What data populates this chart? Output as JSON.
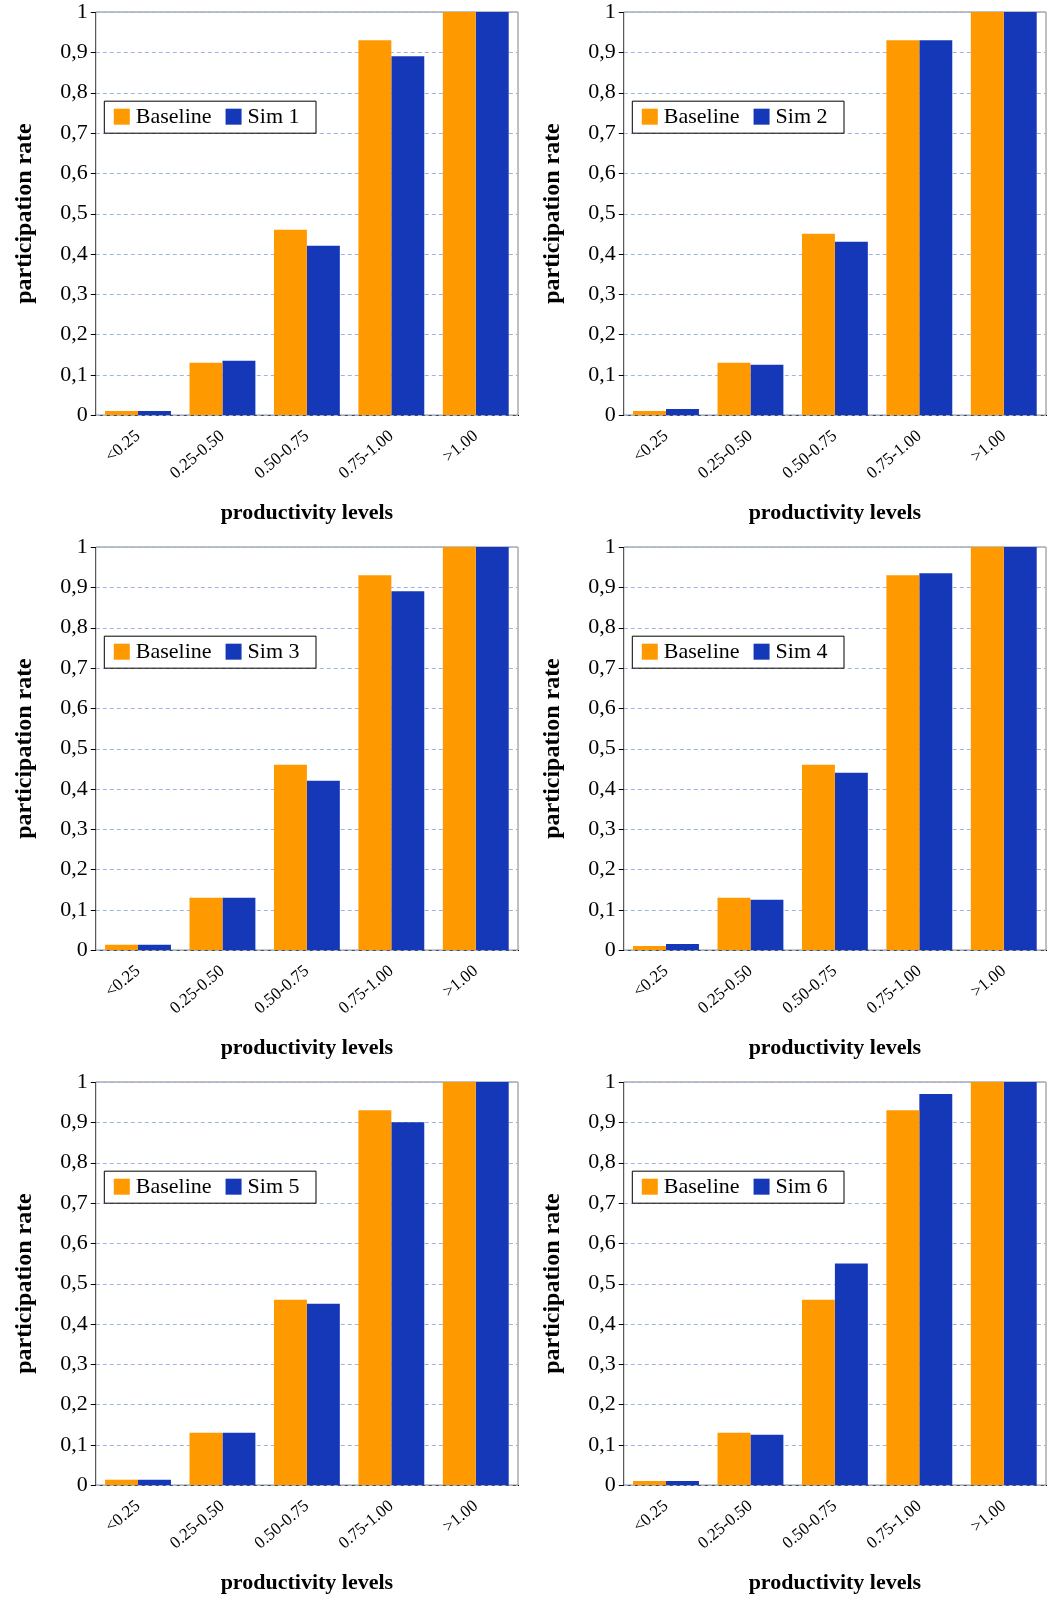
{
  "chart_data": [
    {
      "type": "bar",
      "xlabel": "productivity levels",
      "ylabel": "participation rate",
      "categories": [
        "<0.25",
        "0.25-0.50",
        "0.50-0.75",
        "0.75-1.00",
        ">1.00"
      ],
      "series": [
        {
          "name": "Baseline",
          "color": "#ff9900",
          "values": [
            0.01,
            0.13,
            0.46,
            0.93,
            1.0
          ]
        },
        {
          "name": "Sim 1",
          "color": "#1438b8",
          "values": [
            0.01,
            0.135,
            0.42,
            0.89,
            1.0
          ]
        }
      ],
      "ylim": [
        0,
        1
      ],
      "yticks": [
        {
          "value": 0,
          "label": "0"
        },
        {
          "value": 0.1,
          "label": "0,1"
        },
        {
          "value": 0.2,
          "label": "0,2"
        },
        {
          "value": 0.3,
          "label": "0,3"
        },
        {
          "value": 0.4,
          "label": "0,4"
        },
        {
          "value": 0.5,
          "label": "0,5"
        },
        {
          "value": 0.6,
          "label": "0,6"
        },
        {
          "value": 0.7,
          "label": "0,7"
        },
        {
          "value": 0.8,
          "label": "0,8"
        },
        {
          "value": 0.9,
          "label": "0,9"
        },
        {
          "value": 1,
          "label": "1"
        }
      ],
      "grid": "y",
      "legend": "top left"
    },
    {
      "type": "bar",
      "xlabel": "productivity levels",
      "ylabel": "participation rate",
      "categories": [
        "<0.25",
        "0.25-0.50",
        "0.50-0.75",
        "0.75-1.00",
        ">1.00"
      ],
      "series": [
        {
          "name": "Baseline",
          "color": "#ff9900",
          "values": [
            0.01,
            0.13,
            0.45,
            0.93,
            1.0
          ]
        },
        {
          "name": "Sim 2",
          "color": "#1438b8",
          "values": [
            0.015,
            0.125,
            0.43,
            0.93,
            1.0
          ]
        }
      ],
      "ylim": [
        0,
        1
      ],
      "yticks": [
        {
          "value": 0,
          "label": "0"
        },
        {
          "value": 0.1,
          "label": "0,1"
        },
        {
          "value": 0.2,
          "label": "0,2"
        },
        {
          "value": 0.3,
          "label": "0,3"
        },
        {
          "value": 0.4,
          "label": "0,4"
        },
        {
          "value": 0.5,
          "label": "0,5"
        },
        {
          "value": 0.6,
          "label": "0,6"
        },
        {
          "value": 0.7,
          "label": "0,7"
        },
        {
          "value": 0.8,
          "label": "0,8"
        },
        {
          "value": 0.9,
          "label": "0,9"
        },
        {
          "value": 1,
          "label": "1"
        }
      ],
      "grid": "y",
      "legend": "top left"
    },
    {
      "type": "bar",
      "xlabel": "productivity levels",
      "ylabel": "participation rate",
      "categories": [
        "<0.25",
        "0.25-0.50",
        "0.50-0.75",
        "0.75-1.00",
        ">1.00"
      ],
      "series": [
        {
          "name": "Baseline",
          "color": "#ff9900",
          "values": [
            0.013,
            0.13,
            0.46,
            0.93,
            1.0
          ]
        },
        {
          "name": "Sim 3",
          "color": "#1438b8",
          "values": [
            0.013,
            0.13,
            0.42,
            0.89,
            1.0
          ]
        }
      ],
      "ylim": [
        0,
        1
      ],
      "yticks": [
        {
          "value": 0,
          "label": "0"
        },
        {
          "value": 0.1,
          "label": "0,1"
        },
        {
          "value": 0.2,
          "label": "0,2"
        },
        {
          "value": 0.3,
          "label": "0,3"
        },
        {
          "value": 0.4,
          "label": "0,4"
        },
        {
          "value": 0.5,
          "label": "0,5"
        },
        {
          "value": 0.6,
          "label": "0,6"
        },
        {
          "value": 0.7,
          "label": "0,7"
        },
        {
          "value": 0.8,
          "label": "0,8"
        },
        {
          "value": 0.9,
          "label": "0,9"
        },
        {
          "value": 1,
          "label": "1"
        }
      ],
      "grid": "y",
      "legend": "top left"
    },
    {
      "type": "bar",
      "xlabel": "productivity levels",
      "ylabel": "participation rate",
      "categories": [
        "<0.25",
        "0.25-0.50",
        "0.50-0.75",
        "0.75-1.00",
        ">1.00"
      ],
      "series": [
        {
          "name": "Baseline",
          "color": "#ff9900",
          "values": [
            0.01,
            0.13,
            0.46,
            0.93,
            1.0
          ]
        },
        {
          "name": "Sim 4",
          "color": "#1438b8",
          "values": [
            0.015,
            0.125,
            0.44,
            0.935,
            1.0
          ]
        }
      ],
      "ylim": [
        0,
        1
      ],
      "yticks": [
        {
          "value": 0,
          "label": "0"
        },
        {
          "value": 0.1,
          "label": "0,1"
        },
        {
          "value": 0.2,
          "label": "0,2"
        },
        {
          "value": 0.3,
          "label": "0,3"
        },
        {
          "value": 0.4,
          "label": "0,4"
        },
        {
          "value": 0.5,
          "label": "0,5"
        },
        {
          "value": 0.6,
          "label": "0,6"
        },
        {
          "value": 0.7,
          "label": "0,7"
        },
        {
          "value": 0.8,
          "label": "0,8"
        },
        {
          "value": 0.9,
          "label": "0,9"
        },
        {
          "value": 1,
          "label": "1"
        }
      ],
      "grid": "y",
      "legend": "top left"
    },
    {
      "type": "bar",
      "xlabel": "productivity levels",
      "ylabel": "participation rate",
      "categories": [
        "<0.25",
        "0.25-0.50",
        "0.50-0.75",
        "0.75-1.00",
        ">1.00"
      ],
      "series": [
        {
          "name": "Baseline",
          "color": "#ff9900",
          "values": [
            0.013,
            0.13,
            0.46,
            0.93,
            1.0
          ]
        },
        {
          "name": "Sim 5",
          "color": "#1438b8",
          "values": [
            0.013,
            0.13,
            0.45,
            0.9,
            1.0
          ]
        }
      ],
      "ylim": [
        0,
        1
      ],
      "yticks": [
        {
          "value": 0,
          "label": "0"
        },
        {
          "value": 0.1,
          "label": "0,1"
        },
        {
          "value": 0.2,
          "label": "0,2"
        },
        {
          "value": 0.3,
          "label": "0,3"
        },
        {
          "value": 0.4,
          "label": "0,4"
        },
        {
          "value": 0.5,
          "label": "0,5"
        },
        {
          "value": 0.6,
          "label": "0,6"
        },
        {
          "value": 0.7,
          "label": "0,7"
        },
        {
          "value": 0.8,
          "label": "0,8"
        },
        {
          "value": 0.9,
          "label": "0,9"
        },
        {
          "value": 1,
          "label": "1"
        }
      ],
      "grid": "y",
      "legend": "top left"
    },
    {
      "type": "bar",
      "xlabel": "productivity levels",
      "ylabel": "participation rate",
      "categories": [
        "<0.25",
        "0.25-0.50",
        "0.50-0.75",
        "0.75-1.00",
        ">1.00"
      ],
      "series": [
        {
          "name": "Baseline",
          "color": "#ff9900",
          "values": [
            0.01,
            0.13,
            0.46,
            0.93,
            1.0
          ]
        },
        {
          "name": "Sim 6",
          "color": "#1438b8",
          "values": [
            0.01,
            0.125,
            0.55,
            0.97,
            1.0
          ]
        }
      ],
      "ylim": [
        0,
        1
      ],
      "yticks": [
        {
          "value": 0,
          "label": "0"
        },
        {
          "value": 0.1,
          "label": "0,1"
        },
        {
          "value": 0.2,
          "label": "0,2"
        },
        {
          "value": 0.3,
          "label": "0,3"
        },
        {
          "value": 0.4,
          "label": "0,4"
        },
        {
          "value": 0.5,
          "label": "0,5"
        },
        {
          "value": 0.6,
          "label": "0,6"
        },
        {
          "value": 0.7,
          "label": "0,7"
        },
        {
          "value": 0.8,
          "label": "0,8"
        },
        {
          "value": 0.9,
          "label": "0,9"
        },
        {
          "value": 1,
          "label": "1"
        }
      ],
      "grid": "y",
      "legend": "top left"
    }
  ]
}
